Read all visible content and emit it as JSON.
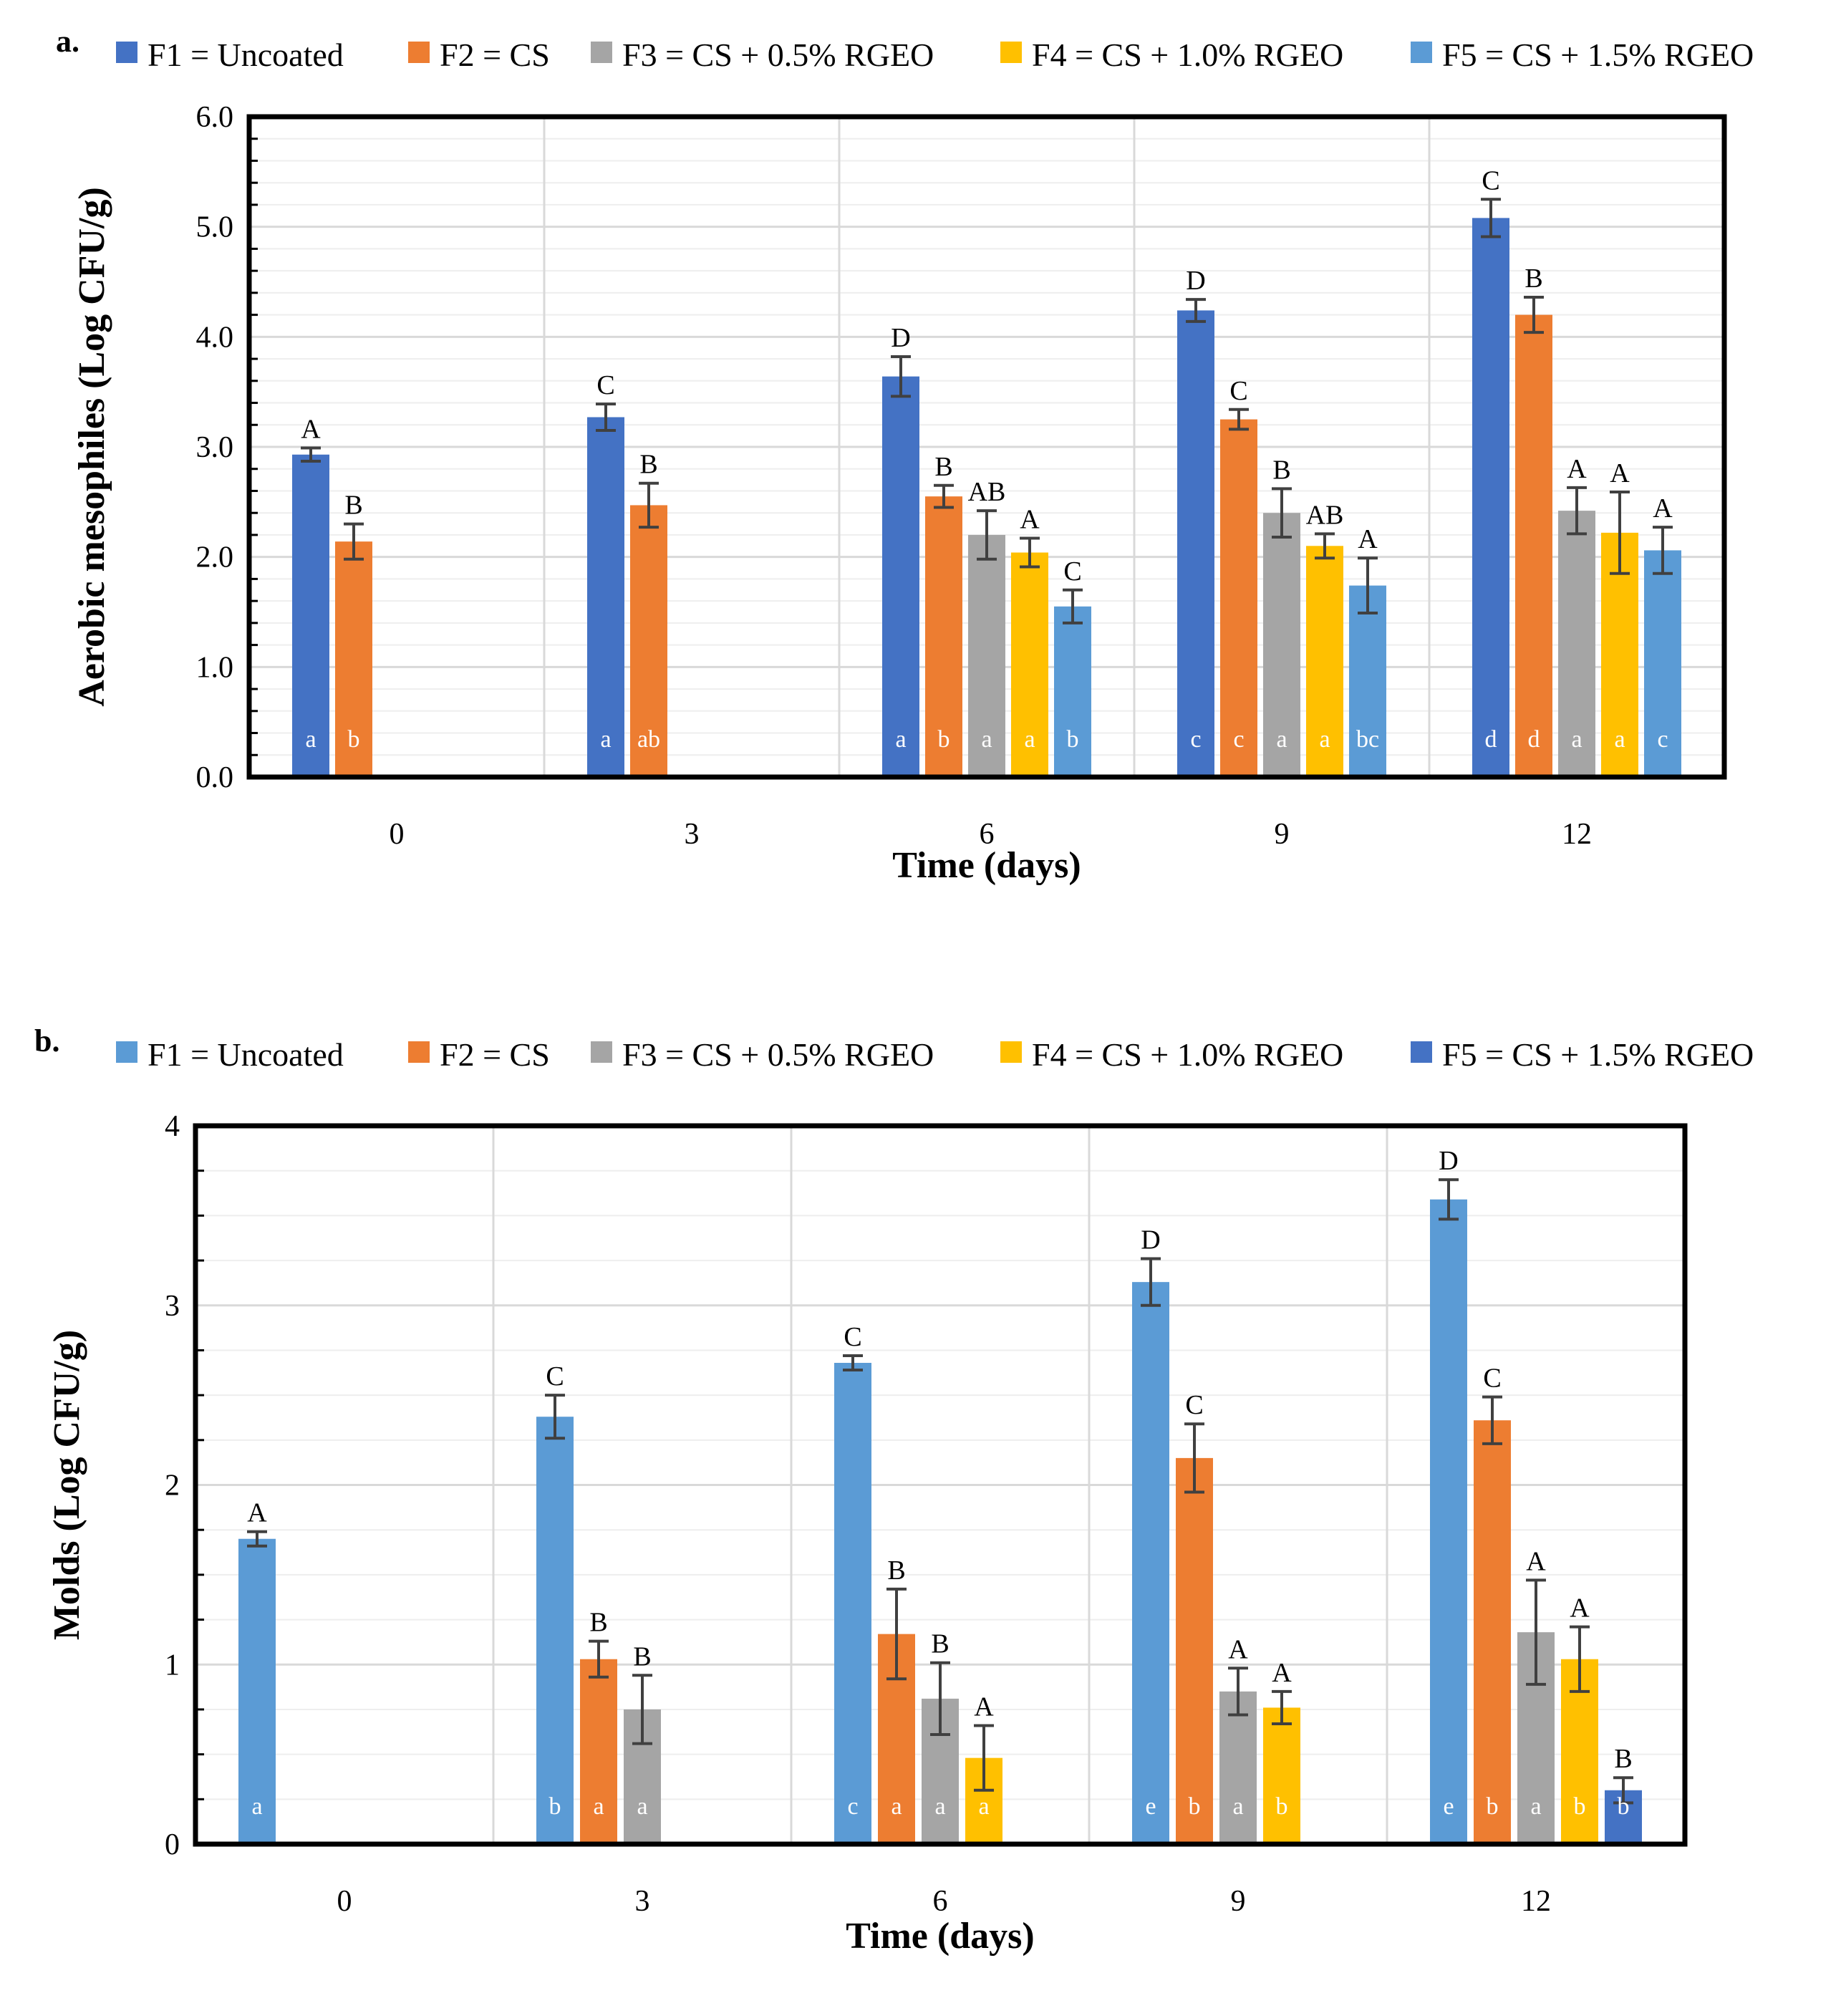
{
  "chart_data": [
    {
      "panel": "a.",
      "type": "bar",
      "ylabel": "Aerobic mesophiles (Log CFU/g)",
      "xlabel": "Time (days)",
      "ylim": [
        0,
        6
      ],
      "yticks": [
        "0.0",
        "1.0",
        "2.0",
        "3.0",
        "4.0",
        "5.0",
        "6.0"
      ],
      "categories": [
        "0",
        "3",
        "6",
        "9",
        "12"
      ],
      "legend_position": "top",
      "series": [
        {
          "name": "F1 = Uncoated",
          "color": "#4472C4",
          "values": [
            2.93,
            3.27,
            3.64,
            4.24,
            5.08
          ],
          "errors": [
            0.06,
            0.12,
            0.18,
            0.1,
            0.17
          ],
          "upper": [
            "A",
            "C",
            "D",
            "D",
            "C"
          ],
          "lower": [
            "a",
            "a",
            "a",
            "c",
            "d"
          ]
        },
        {
          "name": "F2 = CS",
          "color": "#ED7D31",
          "values": [
            2.14,
            2.47,
            2.55,
            3.25,
            4.2
          ],
          "errors": [
            0.16,
            0.2,
            0.1,
            0.09,
            0.16
          ],
          "upper": [
            "B",
            "B",
            "B",
            "C",
            "B"
          ],
          "lower": [
            "b",
            "ab",
            "b",
            "c",
            "d"
          ]
        },
        {
          "name": "F3 = CS + 0.5% RGEO",
          "color": "#A5A5A5",
          "values": [
            null,
            null,
            2.2,
            2.4,
            2.42
          ],
          "errors": [
            null,
            null,
            0.22,
            0.22,
            0.21
          ],
          "upper": [
            "",
            "",
            "AB",
            "B",
            "A"
          ],
          "lower": [
            "",
            "",
            "a",
            "a",
            "a"
          ]
        },
        {
          "name": "F4 = CS + 1.0% RGEO",
          "color": "#FFC000",
          "values": [
            null,
            null,
            2.04,
            2.1,
            2.22
          ],
          "errors": [
            null,
            null,
            0.13,
            0.11,
            0.37
          ],
          "upper": [
            "",
            "",
            "A",
            "AB",
            "A"
          ],
          "lower": [
            "",
            "",
            "a",
            "a",
            "a"
          ]
        },
        {
          "name": "F5 = CS + 1.5% RGEO",
          "color": "#5B9BD5",
          "values": [
            null,
            null,
            1.55,
            1.74,
            2.06
          ],
          "errors": [
            null,
            null,
            0.15,
            0.25,
            0.21
          ],
          "upper": [
            "",
            "",
            "C",
            "A",
            "A"
          ],
          "lower": [
            "",
            "",
            "b",
            "bc",
            "c"
          ]
        }
      ]
    },
    {
      "panel": "b.",
      "type": "bar",
      "ylabel": "Molds (Log CFU/g)",
      "xlabel": "Time (days)",
      "ylim": [
        0,
        4
      ],
      "yticks": [
        "0",
        "1",
        "2",
        "3",
        "4"
      ],
      "categories": [
        "0",
        "3",
        "6",
        "9",
        "12"
      ],
      "legend_position": "top",
      "series": [
        {
          "name": "F1 = Uncoated",
          "color": "#5B9BD5",
          "values": [
            1.7,
            2.38,
            2.68,
            3.13,
            3.59
          ],
          "errors": [
            0.04,
            0.12,
            0.04,
            0.13,
            0.11
          ],
          "upper": [
            "A",
            "C",
            "C",
            "D",
            "D"
          ],
          "lower": [
            "a",
            "b",
            "c",
            "e",
            "e"
          ]
        },
        {
          "name": "F2 = CS",
          "color": "#ED7D31",
          "values": [
            null,
            1.03,
            1.17,
            2.15,
            2.36
          ],
          "errors": [
            null,
            0.1,
            0.25,
            0.19,
            0.13
          ],
          "upper": [
            "",
            "B",
            "B",
            "C",
            "C"
          ],
          "lower": [
            "",
            "a",
            "a",
            "b",
            "b"
          ]
        },
        {
          "name": "F3 = CS + 0.5% RGEO",
          "color": "#A5A5A5",
          "values": [
            null,
            0.75,
            0.81,
            0.85,
            1.18
          ],
          "errors": [
            null,
            0.19,
            0.2,
            0.13,
            0.29
          ],
          "upper": [
            "",
            "B",
            "B",
            "A",
            "A"
          ],
          "lower": [
            "",
            "a",
            "a",
            "a",
            "a"
          ]
        },
        {
          "name": "F4 = CS + 1.0% RGEO",
          "color": "#FFC000",
          "values": [
            null,
            null,
            0.48,
            0.76,
            1.03
          ],
          "errors": [
            null,
            null,
            0.18,
            0.09,
            0.18
          ],
          "upper": [
            "",
            "",
            "A",
            "A",
            "A"
          ],
          "lower": [
            "",
            "",
            "a",
            "b",
            "b"
          ]
        },
        {
          "name": "F5 = CS + 1.5% RGEO",
          "color": "#4472C4",
          "values": [
            null,
            null,
            null,
            null,
            0.3
          ],
          "errors": [
            null,
            null,
            null,
            null,
            0.07
          ],
          "upper": [
            "",
            "",
            "",
            "",
            "B"
          ],
          "lower": [
            "",
            "",
            "",
            "",
            "b"
          ]
        }
      ]
    }
  ]
}
